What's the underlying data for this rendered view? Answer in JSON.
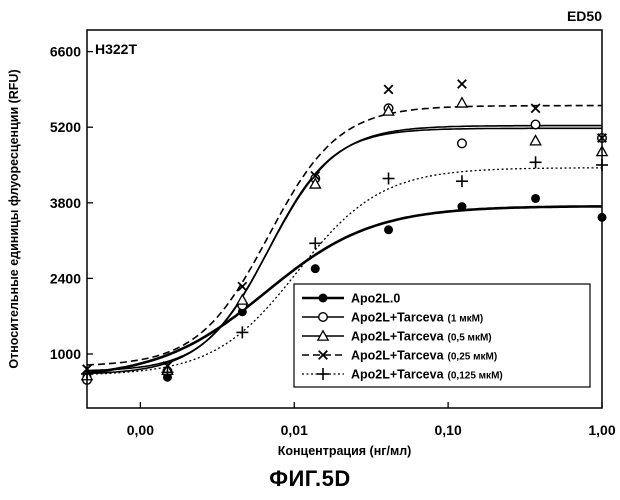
{
  "figure_caption": "ФИГ.5D",
  "chart_data": {
    "type": "scatter",
    "cell_line": "H322T",
    "corner_label": "ED50",
    "xlabel": "Концентрация (нг/мл)",
    "ylabel": "Относительные единицы флуоресценции (RFU)",
    "x_scale": "log",
    "xlim": [
      0.00045,
      1.0
    ],
    "ylim": [
      0,
      7000
    ],
    "x_ticks": [
      {
        "value": 0.001,
        "label": "0,00"
      },
      {
        "value": 0.01,
        "label": "0,01"
      },
      {
        "value": 0.1,
        "label": "0,10"
      },
      {
        "value": 1.0,
        "label": "1,00"
      }
    ],
    "y_ticks": [
      1000,
      2400,
      3800,
      5200,
      6600
    ],
    "legend_position": "bottom-right",
    "series": [
      {
        "name": "Apo2L.0",
        "note": "",
        "marker": "dot",
        "line": "solid-thick",
        "x": [
          0.00045,
          0.0015,
          0.0046,
          0.0137,
          0.041,
          0.123,
          0.37,
          1.0
        ],
        "y": [
          580,
          570,
          1780,
          2580,
          3300,
          3730,
          3880,
          3530
        ],
        "fit": {
          "bottom": 540,
          "top": 3740,
          "ec50": 0.0065,
          "hill": 1.25
        }
      },
      {
        "name": "Apo2L+Tarceva",
        "note": "(1 мкМ)",
        "marker": "circle",
        "line": "solid",
        "x": [
          0.00045,
          0.0015,
          0.0046,
          0.0137,
          0.041,
          0.123,
          0.37,
          1.0
        ],
        "y": [
          520,
          680,
          1900,
          4250,
          5550,
          4900,
          5250,
          5000
        ],
        "fit": {
          "bottom": 620,
          "top": 5230,
          "ec50": 0.0068,
          "hill": 2.0
        }
      },
      {
        "name": "Apo2L+Tarceva",
        "note": "(0,5 мкМ)",
        "marker": "triangle",
        "line": "solid",
        "x": [
          0.00045,
          0.0015,
          0.0046,
          0.0137,
          0.041,
          0.123,
          0.37,
          1.0
        ],
        "y": [
          600,
          700,
          2000,
          4150,
          5500,
          5650,
          4950,
          4750
        ],
        "fit": {
          "bottom": 680,
          "top": 5180,
          "ec50": 0.0068,
          "hill": 2.1
        }
      },
      {
        "name": "Apo2L+Tarceva",
        "note": "(0,25 мкМ)",
        "marker": "x",
        "line": "dashed",
        "x": [
          0.00045,
          0.0015,
          0.0046,
          0.0137,
          0.041,
          0.123,
          0.37,
          1.0
        ],
        "y": [
          720,
          780,
          2250,
          4300,
          5900,
          6000,
          5550,
          5000
        ],
        "fit": {
          "bottom": 770,
          "top": 5600,
          "ec50": 0.0068,
          "hill": 1.9
        }
      },
      {
        "name": "Apo2L+Tarceva",
        "note": "(0,125 мкМ)",
        "marker": "plus",
        "line": "dotted",
        "x": [
          0.00045,
          0.0015,
          0.0046,
          0.0137,
          0.041,
          0.123,
          0.37,
          1.0
        ],
        "y": [
          630,
          660,
          1400,
          3050,
          4250,
          4200,
          4550,
          4500
        ],
        "fit": {
          "bottom": 600,
          "top": 4450,
          "ec50": 0.0105,
          "hill": 1.6
        }
      }
    ]
  }
}
